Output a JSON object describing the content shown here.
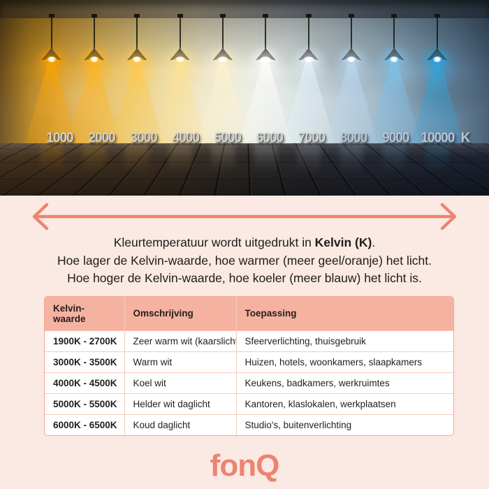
{
  "photo": {
    "scale_labels": [
      "1000",
      "2000",
      "3000",
      "4000",
      "5000",
      "6000",
      "7000",
      "8000",
      "9000",
      "10000"
    ],
    "scale_unit": "K"
  },
  "intro": {
    "line1_prefix": "Kleurtemperatuur wordt uitgedrukt in ",
    "line1_bold": "Kelvin (K)",
    "line1_suffix": ".",
    "line2": "Hoe lager de Kelvin-waarde, hoe warmer (meer geel/oranje) het licht.",
    "line3": "Hoe hoger de Kelvin-waarde, hoe koeler (meer blauw) het licht is."
  },
  "table": {
    "headers": [
      "Kelvin-waarde",
      "Omschrijving",
      "Toepassing"
    ],
    "rows": [
      [
        "1900K - 2700K",
        "Zeer warm wit (kaarslicht)",
        "Sfeerverlichting, thuisgebruik"
      ],
      [
        "3000K - 3500K",
        "Warm wit",
        "Huizen, hotels, woonkamers, slaapkamers"
      ],
      [
        "4000K - 4500K",
        "Koel wit",
        "Keukens, badkamers, werkruimtes"
      ],
      [
        "5000K - 5500K",
        "Helder wit daglicht",
        "Kantoren, klaslokalen, werkplaatsen"
      ],
      [
        "6000K - 6500K",
        "Koud daglicht",
        "Studio's, buitenverlichting"
      ]
    ]
  },
  "footer": {
    "brand": "fonQ"
  },
  "colors": {
    "accent": "#ec8471",
    "background_pink": "#fbe9e3",
    "text": "#1d1d1b",
    "table_header_bg": "#f6b2a1",
    "table_border": "#f2a893",
    "table_row_line": "#f8cabb",
    "lamp_colors": [
      "#ffa400",
      "#ffb520",
      "#ffc848",
      "#ffe18f",
      "#fff2cd",
      "#ffffff",
      "#e6f3ff",
      "#bcdaf3",
      "#7cc3ec",
      "#2ba6e4"
    ]
  }
}
